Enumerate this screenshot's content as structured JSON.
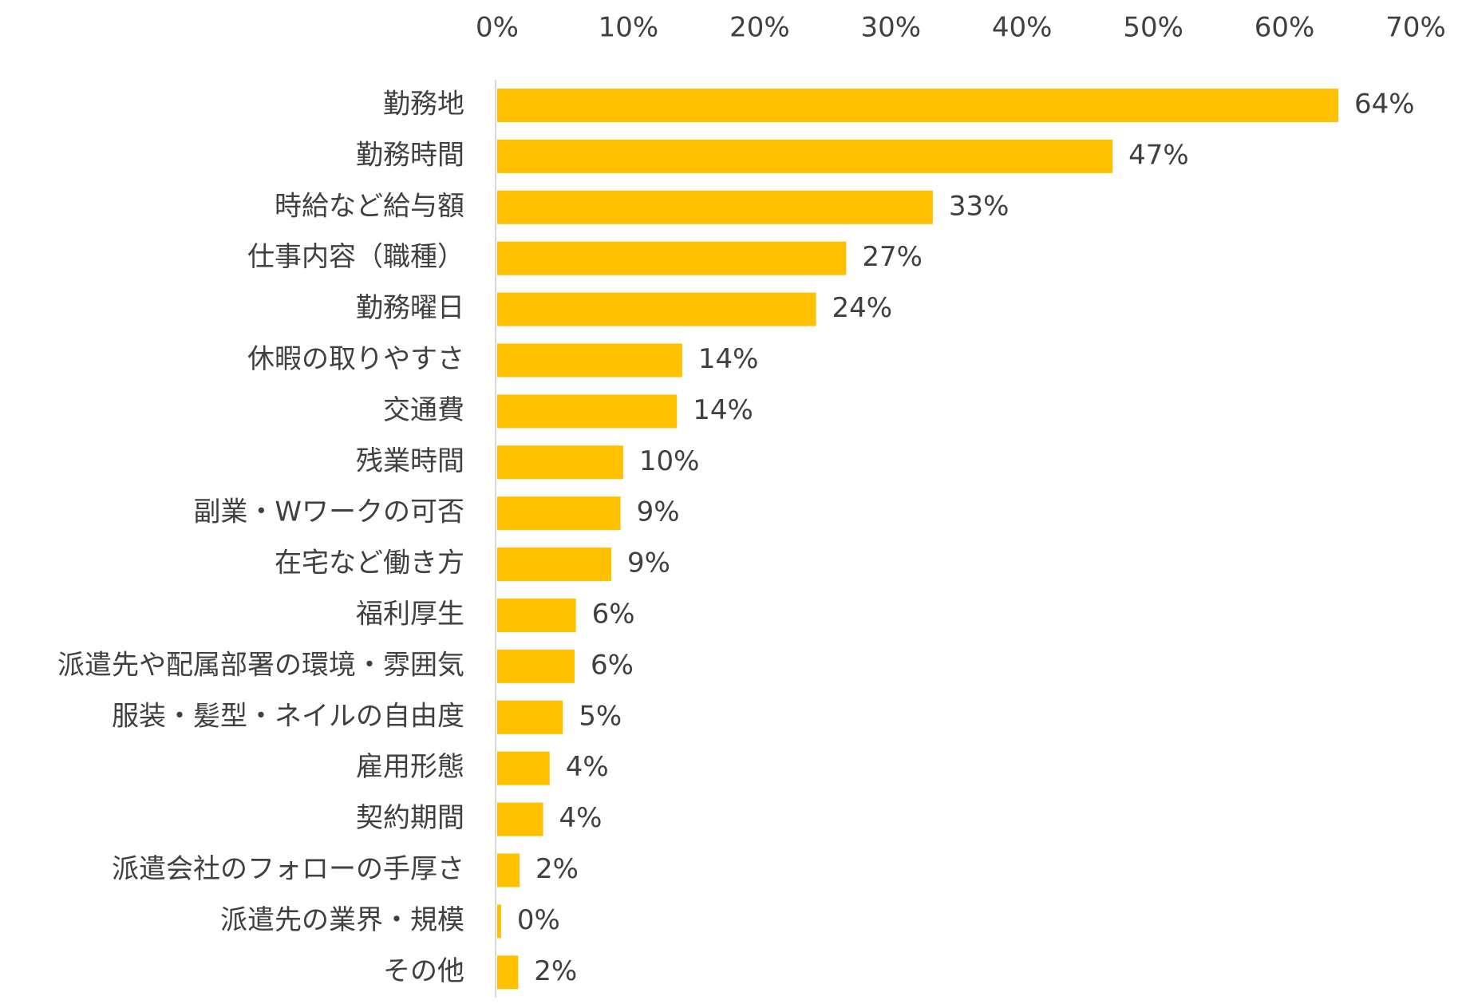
{
  "chart_data": {
    "type": "bar",
    "orientation": "horizontal",
    "categories": [
      "勤務地",
      "勤務時間",
      "時給など給与額",
      "仕事内容（職種）",
      "勤務曜日",
      "休暇の取りやすさ",
      "交通費",
      "残業時間",
      "副業・Wワークの可否",
      "在宅など働き方",
      "福利厚生",
      "派遣先や配属部署の環境・雰囲気",
      "服装・髪型・ネイルの自由度",
      "雇用形態",
      "契約期間",
      "派遣会社のフォローの手厚さ",
      "派遣先の業界・規模",
      "その他"
    ],
    "values": [
      64.1,
      46.9,
      33.2,
      26.6,
      24.3,
      14.1,
      13.7,
      9.6,
      9.4,
      8.7,
      6.0,
      5.9,
      5.0,
      4.0,
      3.5,
      1.7,
      0.3,
      1.6
    ],
    "value_labels": [
      "64%",
      "47%",
      "33%",
      "27%",
      "24%",
      "14%",
      "14%",
      "10%",
      "9%",
      "9%",
      "6%",
      "6%",
      "5%",
      "4%",
      "4%",
      "2%",
      "0%",
      "2%"
    ],
    "color": "#ffc000",
    "xlim": [
      0,
      70
    ],
    "xticks": [
      {
        "value": 0,
        "label": "0%"
      },
      {
        "value": 10,
        "label": "10%"
      },
      {
        "value": 20,
        "label": "20%"
      },
      {
        "value": 30,
        "label": "30%"
      },
      {
        "value": 40,
        "label": "40%"
      },
      {
        "value": 50,
        "label": "50%"
      },
      {
        "value": 60,
        "label": "60%"
      },
      {
        "value": 70,
        "label": "70%"
      }
    ],
    "grid": false
  }
}
